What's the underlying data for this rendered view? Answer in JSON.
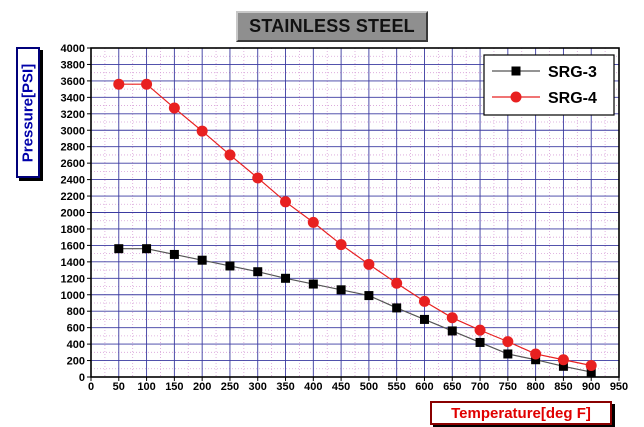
{
  "chart_data": {
    "type": "line",
    "title": "STAINLESS STEEL",
    "xlabel": "Temperature[deg F]",
    "ylabel": "Pressure[PSI]",
    "xlim": [
      0,
      950
    ],
    "ylim": [
      0,
      4000
    ],
    "x_ticks": [
      0,
      50,
      100,
      150,
      200,
      250,
      300,
      350,
      400,
      450,
      500,
      550,
      600,
      650,
      700,
      750,
      800,
      850,
      900,
      950
    ],
    "y_ticks": [
      0,
      200,
      400,
      600,
      800,
      1000,
      1200,
      1400,
      1600,
      1800,
      2000,
      2200,
      2400,
      2600,
      2800,
      3000,
      3200,
      3400,
      3600,
      3800,
      4000
    ],
    "grid": true,
    "legend_position": "top-right",
    "series": [
      {
        "name": "SRG-3",
        "color": "#000000",
        "line_color": "#555555",
        "marker": "square",
        "x": [
          50,
          100,
          150,
          200,
          250,
          300,
          350,
          400,
          450,
          500,
          550,
          600,
          650,
          700,
          750,
          800,
          850,
          900
        ],
        "y": [
          1560,
          1560,
          1490,
          1420,
          1350,
          1280,
          1200,
          1130,
          1060,
          990,
          840,
          700,
          560,
          420,
          280,
          210,
          130,
          60
        ]
      },
      {
        "name": "SRG-4",
        "color": "#e82020",
        "line_color": "#e82020",
        "marker": "circle",
        "x": [
          50,
          100,
          150,
          200,
          250,
          300,
          350,
          400,
          450,
          500,
          550,
          600,
          650,
          700,
          750,
          800,
          850,
          900
        ],
        "y": [
          3560,
          3560,
          3270,
          2990,
          2700,
          2420,
          2130,
          1880,
          1610,
          1370,
          1140,
          920,
          720,
          570,
          430,
          280,
          210,
          140
        ]
      }
    ]
  }
}
